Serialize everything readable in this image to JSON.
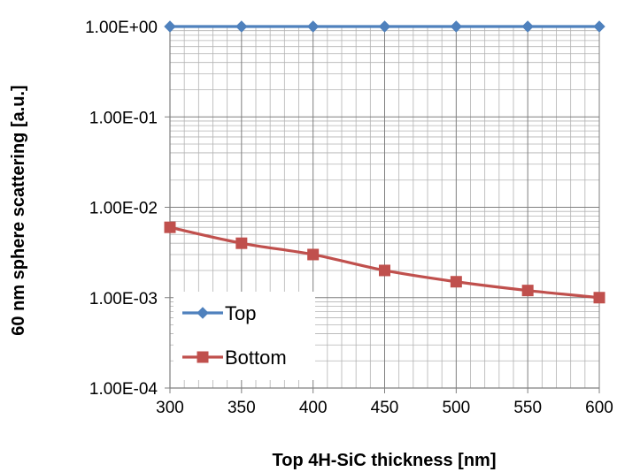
{
  "chart_data": {
    "type": "line",
    "title": "",
    "xlabel": "Top 4H-SiC thickness [nm]",
    "ylabel": "60 nm sphere scattering  [a.u.]",
    "x": [
      300,
      350,
      400,
      450,
      500,
      550,
      600
    ],
    "xlim": [
      300,
      600
    ],
    "x_ticks": [
      300,
      350,
      400,
      450,
      500,
      550,
      600
    ],
    "x_tick_labels": [
      "300",
      "350",
      "400",
      "450",
      "500",
      "550",
      "600"
    ],
    "y_scale": "log",
    "ylim": [
      0.0001,
      1
    ],
    "y_ticks": [
      0.0001,
      0.001,
      0.01,
      0.1,
      1
    ],
    "y_tick_labels": [
      "1.00E-04",
      "1.00E-03",
      "1.00E-02",
      "1.00E-01",
      "1.00E+00"
    ],
    "grid": true,
    "legend_position": "bottom-left",
    "series": [
      {
        "name": "Top",
        "color": "#4f81bd",
        "marker": "diamond",
        "values": [
          1,
          1,
          1,
          1,
          1,
          1,
          1
        ]
      },
      {
        "name": "Bottom",
        "color": "#c0504d",
        "marker": "square",
        "values": [
          0.006,
          0.004,
          0.003,
          0.002,
          0.0015,
          0.0012,
          0.001
        ]
      }
    ]
  }
}
